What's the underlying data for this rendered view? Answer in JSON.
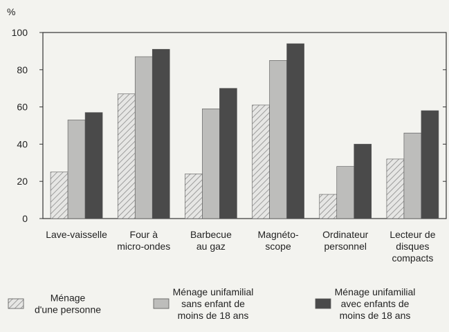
{
  "chart_data": {
    "type": "bar",
    "y_label": "%",
    "categories": [
      "Lave-vaisselle",
      "Four à\nmicro-ondes",
      "Barbecue\nau gaz",
      "Magnéto-\nscope",
      "Ordinateur\npersonnel",
      "Lecteur de\ndisques\ncompacts"
    ],
    "series": [
      {
        "name": "Ménage\nd'une personne",
        "color": "#d4d4d4",
        "pattern": "hatch",
        "values": [
          25,
          67,
          24,
          61,
          13,
          32
        ]
      },
      {
        "name": "Ménage unifamilial\nsans enfant de\nmoins de 18 ans",
        "color": "#bdbdbb",
        "values": [
          53,
          87,
          59,
          85,
          28,
          46
        ]
      },
      {
        "name": "Ménage unifamilial\navec enfants de\nmoins de 18 ans",
        "color": "#4a4a4a",
        "values": [
          57,
          91,
          70,
          94,
          40,
          58
        ]
      }
    ],
    "ylim": [
      0,
      100
    ],
    "yticks": [
      0,
      20,
      40,
      60,
      80,
      100
    ],
    "grid": false
  }
}
